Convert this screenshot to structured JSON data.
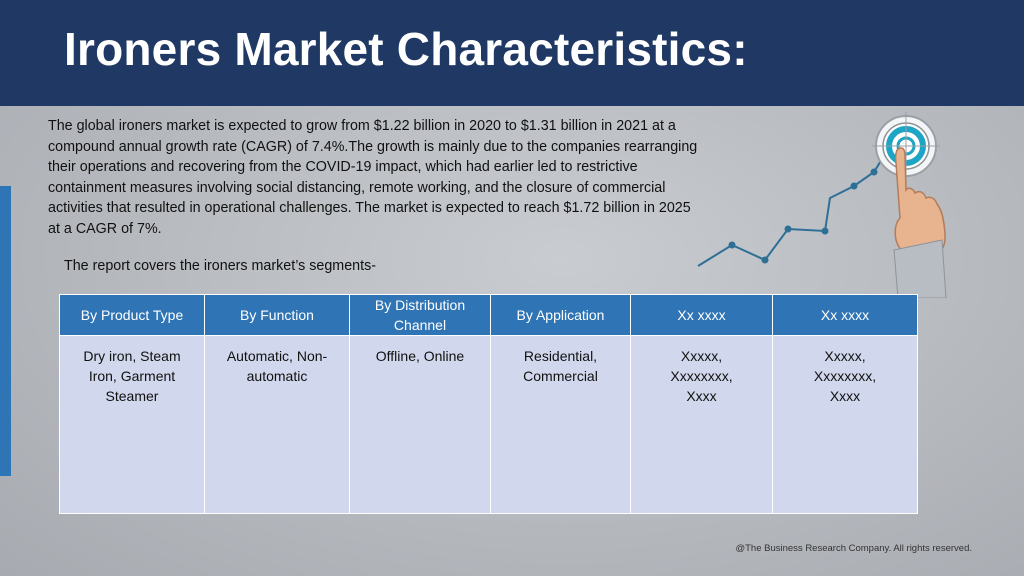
{
  "slide": {
    "title": "Ironers Market Characteristics:",
    "intro": "The global ironers market is expected to grow from $1.22 billion in 2020 to $1.31 billion in 2021 at a compound annual growth rate (CAGR) of 7.4%.The growth is mainly due to the companies rearranging their operations and recovering from the COVID-19 impact, which had earlier led to restrictive containment measures involving social distancing, remote working, and the closure of commercial activities that resulted in operational challenges. The market is expected to reach $1.72 billion in 2025 at a CAGR of 7%.",
    "segments_line": "The report covers the ironers market’s segments-",
    "footer": "@The Business Research Company. All rights reserved."
  },
  "table": {
    "headers": [
      "By Product Type",
      "By Function",
      "By Distribution Channel",
      "By Application",
      "Xx xxxx",
      "Xx xxxx"
    ],
    "cells": [
      [
        "Dry iron, Steam",
        "Iron, Garment",
        "Steamer"
      ],
      [
        "Automatic, Non-",
        "automatic"
      ],
      [
        "Offline, Online"
      ],
      [
        "Residential,",
        "Commercial"
      ],
      [
        "Xxxxx,",
        "Xxxxxxxx,",
        "Xxxx"
      ],
      [
        "Xxxxx,",
        "Xxxxxxxx,",
        "Xxxx"
      ]
    ]
  },
  "illustration": {
    "icon": "hand-touching-target-icon",
    "line_color": "#2e6f95",
    "target_color": "#1ea4c4"
  }
}
